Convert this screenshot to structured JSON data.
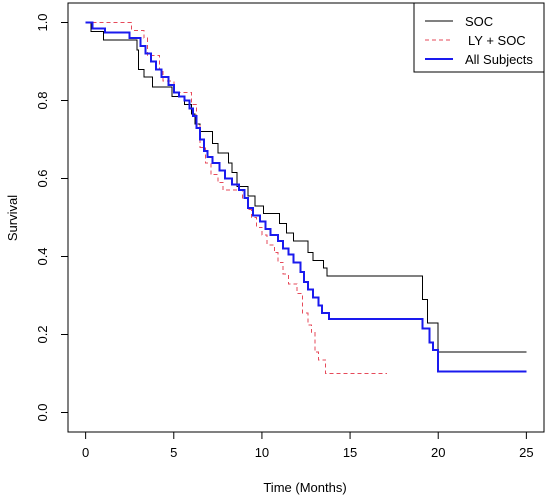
{
  "chart_data": {
    "type": "line",
    "xlabel": "Time (Months)",
    "ylabel": "Survival",
    "xlim": [
      -1,
      26
    ],
    "ylim": [
      -0.05,
      1.05
    ],
    "x_ticks": [
      0,
      5,
      10,
      15,
      20,
      25
    ],
    "y_ticks": [
      0.0,
      0.2,
      0.4,
      0.6,
      0.8,
      1.0
    ],
    "x_tick_labels": [
      "0",
      "5",
      "10",
      "15",
      "20",
      "25"
    ],
    "y_tick_labels": [
      "0.0",
      "0.2",
      "0.4",
      "0.6",
      "0.8",
      "1.0"
    ],
    "grid": false,
    "legend_position": "top-right",
    "step": true,
    "series": [
      {
        "name": "SOC",
        "color": "#000000",
        "dash": "solid",
        "width": 1,
        "points": [
          [
            0,
            1.0
          ],
          [
            0.3,
            0.977
          ],
          [
            1.0,
            0.955
          ],
          [
            2.9,
            0.93
          ],
          [
            3.0,
            0.88
          ],
          [
            3.3,
            0.86
          ],
          [
            3.8,
            0.835
          ],
          [
            4.6,
            0.835
          ],
          [
            4.9,
            0.81
          ],
          [
            5.6,
            0.79
          ],
          [
            6.0,
            0.765
          ],
          [
            6.2,
            0.74
          ],
          [
            6.5,
            0.72
          ],
          [
            7.2,
            0.69
          ],
          [
            7.5,
            0.665
          ],
          [
            8.1,
            0.64
          ],
          [
            8.3,
            0.615
          ],
          [
            8.6,
            0.58
          ],
          [
            9.2,
            0.555
          ],
          [
            9.6,
            0.53
          ],
          [
            10.1,
            0.51
          ],
          [
            11.0,
            0.485
          ],
          [
            11.4,
            0.46
          ],
          [
            11.8,
            0.44
          ],
          [
            12.6,
            0.41
          ],
          [
            12.9,
            0.39
          ],
          [
            13.5,
            0.37
          ],
          [
            13.7,
            0.35
          ],
          [
            19.0,
            0.35
          ],
          [
            19.1,
            0.29
          ],
          [
            19.4,
            0.23
          ],
          [
            19.8,
            0.23
          ],
          [
            20.0,
            0.155
          ],
          [
            25.0,
            0.155
          ]
        ]
      },
      {
        "name": "LY + SOC",
        "color": "#e64a5a",
        "dash": "dashed",
        "width": 1,
        "points": [
          [
            0,
            1.0
          ],
          [
            2.6,
            0.98
          ],
          [
            3.3,
            0.96
          ],
          [
            3.5,
            0.915
          ],
          [
            4.2,
            0.88
          ],
          [
            4.4,
            0.85
          ],
          [
            5.0,
            0.82
          ],
          [
            5.7,
            0.82
          ],
          [
            6.0,
            0.79
          ],
          [
            6.3,
            0.74
          ],
          [
            6.5,
            0.68
          ],
          [
            6.8,
            0.64
          ],
          [
            7.1,
            0.61
          ],
          [
            7.5,
            0.59
          ],
          [
            7.8,
            0.57
          ],
          [
            8.7,
            0.57
          ],
          [
            8.9,
            0.55
          ],
          [
            9.2,
            0.52
          ],
          [
            9.4,
            0.5
          ],
          [
            9.7,
            0.475
          ],
          [
            10.0,
            0.455
          ],
          [
            10.3,
            0.43
          ],
          [
            10.7,
            0.41
          ],
          [
            10.9,
            0.385
          ],
          [
            11.2,
            0.355
          ],
          [
            11.5,
            0.33
          ],
          [
            12.0,
            0.305
          ],
          [
            12.3,
            0.255
          ],
          [
            12.6,
            0.225
          ],
          [
            12.8,
            0.205
          ],
          [
            13.0,
            0.155
          ],
          [
            13.2,
            0.135
          ],
          [
            13.6,
            0.1
          ],
          [
            17.1,
            0.1
          ]
        ]
      },
      {
        "name": "All Subjects",
        "color": "#1a1aee",
        "dash": "solid",
        "width": 2,
        "points": [
          [
            0,
            1.0
          ],
          [
            0.4,
            0.985
          ],
          [
            1.1,
            0.975
          ],
          [
            2.5,
            0.96
          ],
          [
            3.1,
            0.94
          ],
          [
            3.4,
            0.92
          ],
          [
            3.7,
            0.9
          ],
          [
            4.0,
            0.88
          ],
          [
            4.3,
            0.86
          ],
          [
            4.7,
            0.84
          ],
          [
            5.0,
            0.82
          ],
          [
            5.3,
            0.81
          ],
          [
            5.6,
            0.8
          ],
          [
            5.9,
            0.78
          ],
          [
            6.1,
            0.76
          ],
          [
            6.3,
            0.73
          ],
          [
            6.5,
            0.7
          ],
          [
            6.7,
            0.67
          ],
          [
            6.9,
            0.655
          ],
          [
            7.2,
            0.64
          ],
          [
            7.6,
            0.62
          ],
          [
            7.9,
            0.6
          ],
          [
            8.3,
            0.585
          ],
          [
            8.7,
            0.57
          ],
          [
            9.0,
            0.55
          ],
          [
            9.2,
            0.525
          ],
          [
            9.5,
            0.505
          ],
          [
            9.9,
            0.49
          ],
          [
            10.2,
            0.47
          ],
          [
            10.5,
            0.455
          ],
          [
            10.9,
            0.44
          ],
          [
            11.2,
            0.42
          ],
          [
            11.5,
            0.405
          ],
          [
            11.8,
            0.385
          ],
          [
            12.2,
            0.36
          ],
          [
            12.4,
            0.335
          ],
          [
            12.6,
            0.315
          ],
          [
            12.9,
            0.295
          ],
          [
            13.2,
            0.275
          ],
          [
            13.4,
            0.255
          ],
          [
            13.8,
            0.24
          ],
          [
            19.0,
            0.24
          ],
          [
            19.1,
            0.215
          ],
          [
            19.5,
            0.18
          ],
          [
            19.7,
            0.16
          ],
          [
            20.0,
            0.105
          ],
          [
            25.0,
            0.105
          ]
        ]
      }
    ]
  }
}
